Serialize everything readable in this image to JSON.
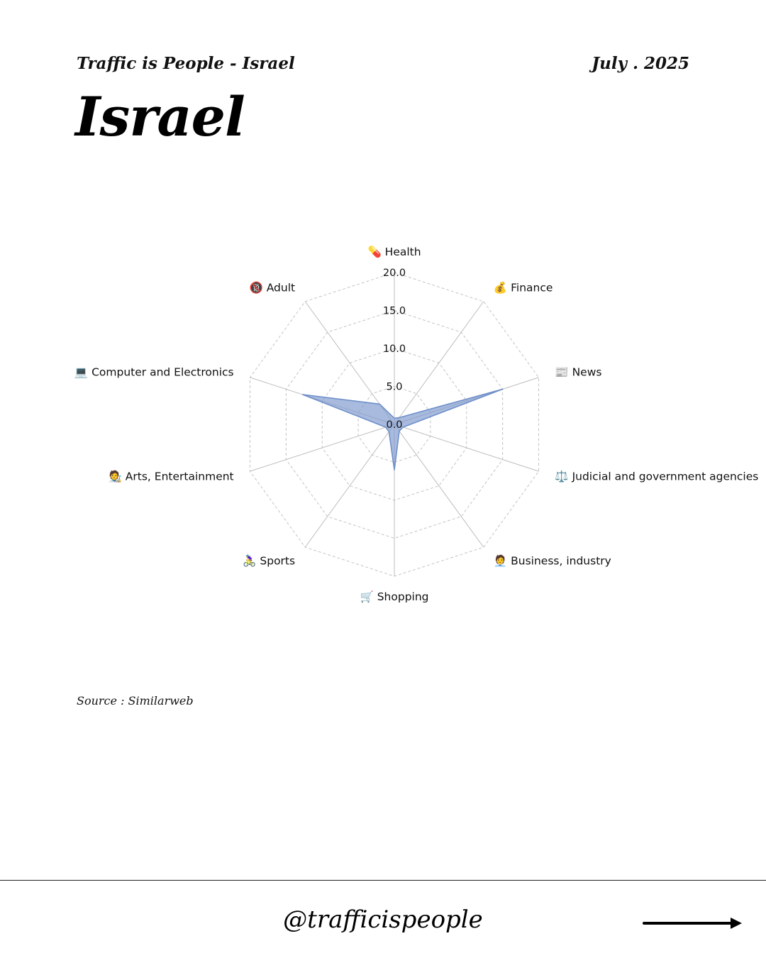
{
  "header": {
    "subtitle": "Traffic is People - Israel",
    "date": "July . 2025",
    "title": "Israel"
  },
  "source": "Source : Similarweb",
  "footer": {
    "handle": "@trafficispeople",
    "arrow_icon": "right-arrow-icon"
  },
  "chart_data": {
    "type": "radar",
    "categories": [
      "💊 Health",
      "💰 Finance",
      "📰 News",
      "⚖️ Judicial and government agencies",
      "🧑‍💼 Business, industry",
      "🛒 Shopping",
      "🚴‍♀️ Sports",
      "🧑‍🎨 Arts, Entertainment",
      "💻 Computer and Electronics",
      "🔞 Adult"
    ],
    "series": [
      {
        "values": [
          0.8,
          1.1,
          15.0,
          1.2,
          1.1,
          6.0,
          1.2,
          1.2,
          12.7,
          3.3
        ]
      }
    ],
    "ticks": [
      "0.0",
      "5.0",
      "10.0",
      "15.0",
      "20.0"
    ],
    "rmax": 20,
    "grid": true,
    "colors": {
      "fill": "#7f9bd0",
      "stroke": "#6f8fc9",
      "spoke": "#bdbdbd",
      "grid": "#c4c4c4"
    }
  }
}
